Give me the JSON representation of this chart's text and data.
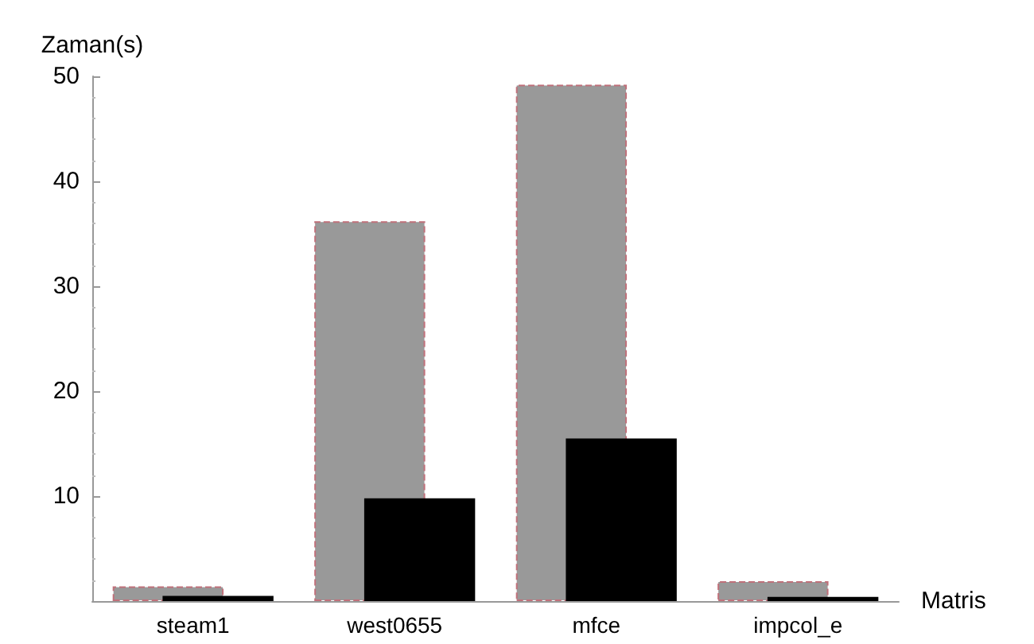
{
  "chart_data": {
    "type": "bar",
    "xlabel": "Matris",
    "ylabel": "Zaman(s)",
    "categories": [
      "steam1",
      "west0655",
      "mfce",
      "impcol_e"
    ],
    "series": [
      {
        "color": "#999999",
        "values": [
          1.4,
          36.2,
          49.2,
          1.9
        ]
      },
      {
        "color": "#000000",
        "values": [
          0.5,
          9.8,
          15.5,
          0.4
        ]
      }
    ],
    "ylim": [
      0,
      50
    ],
    "yticks": [
      {
        "value": 0,
        "label": null
      },
      10,
      20,
      30,
      40,
      50
    ],
    "grid": false
  }
}
